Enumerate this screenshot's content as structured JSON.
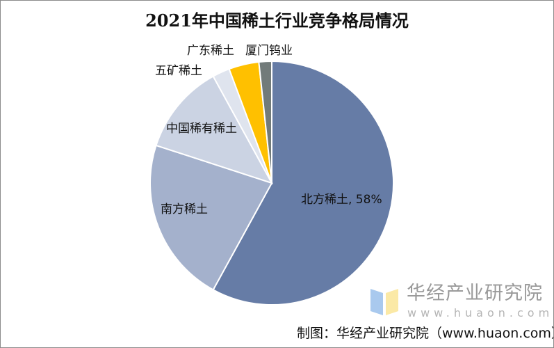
{
  "chart_data": {
    "type": "pie",
    "title": "2021年中国稀土行业竞争格局情况",
    "slices": [
      {
        "label": "北方稀土",
        "value": 58,
        "data_label": "北方稀土, 58%",
        "color": "#667ca6"
      },
      {
        "label": "南方稀土",
        "value": 22,
        "data_label": "南方稀土",
        "color": "#a4b1cc"
      },
      {
        "label": "中国稀有稀土",
        "value": 12,
        "data_label": "中国稀有稀土",
        "color": "#cbd3e3"
      },
      {
        "label": "五矿稀土",
        "value": 2.3,
        "data_label": "五矿稀土",
        "color": "#dfe4ee"
      },
      {
        "label": "广东稀土",
        "value": 4,
        "data_label": "广东稀土",
        "color": "#ffc000"
      },
      {
        "label": "厦门钨业",
        "value": 1.7,
        "data_label": "厦门钨业",
        "color": "#727b7a"
      }
    ],
    "start": "12 o'clock",
    "direction": "clockwise"
  },
  "watermark": {
    "name": "华经产业研究院",
    "url": "www.huaon.com"
  },
  "source": "制图：华经产业研究院（www.huaon.com）"
}
